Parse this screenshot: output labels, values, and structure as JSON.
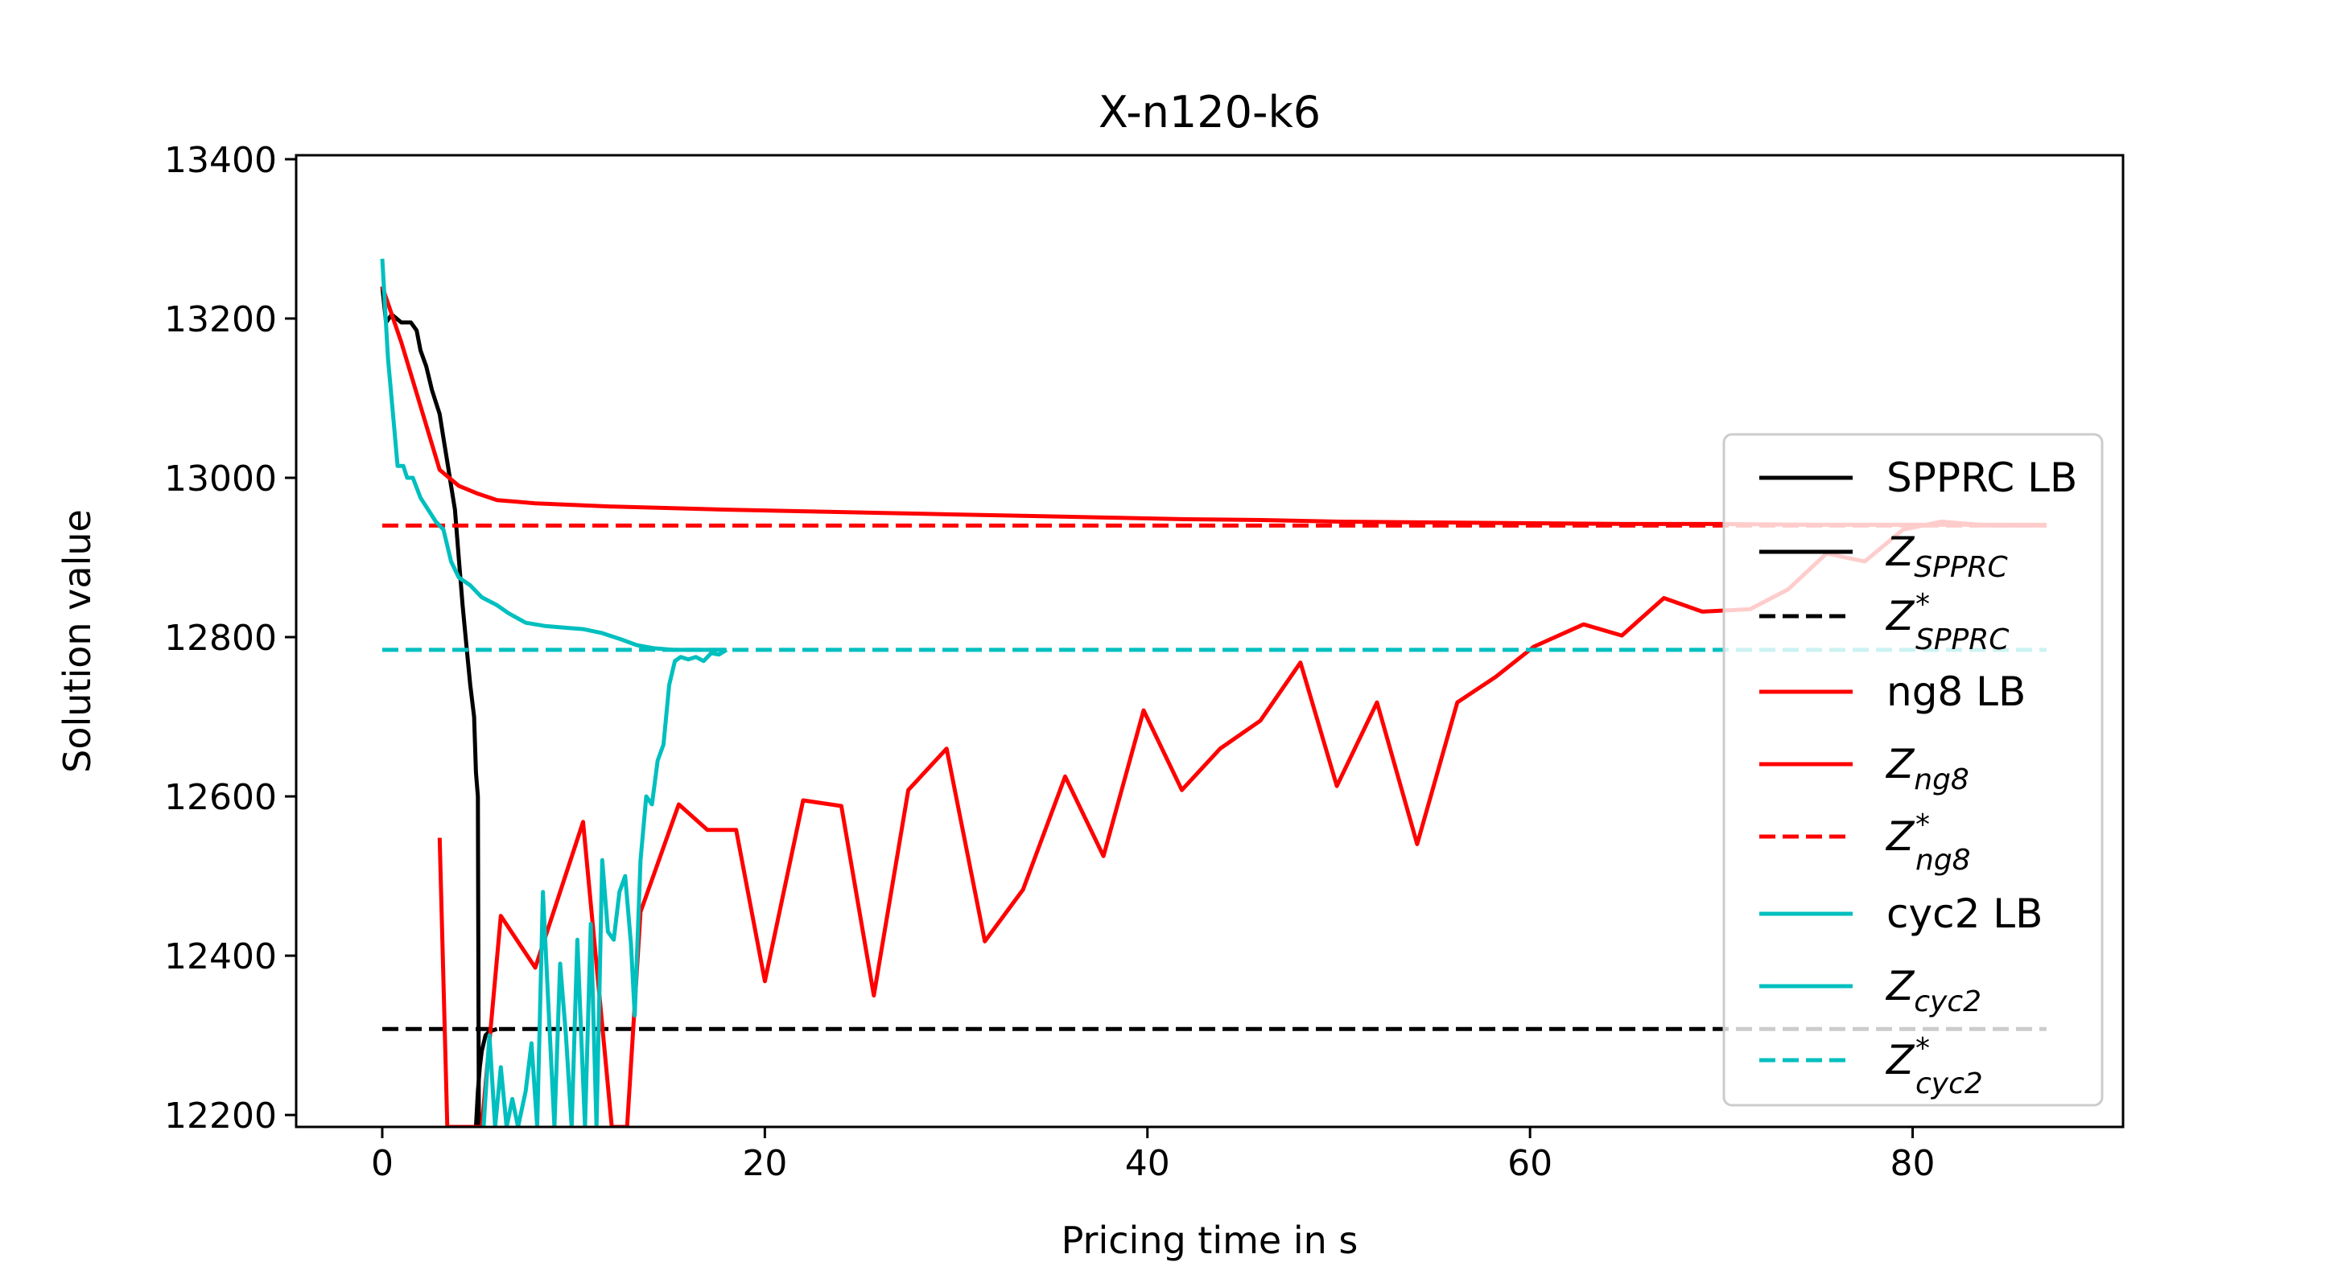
{
  "chart_data": {
    "type": "line",
    "title": "X-n120-k6",
    "xlabel": "Pricing time in s",
    "ylabel": "Solution value",
    "xlim": [
      -4.5,
      91
    ],
    "ylim": [
      12185,
      13405
    ],
    "xticks": [
      0,
      20,
      40,
      60,
      80
    ],
    "yticks": [
      12200,
      12400,
      12600,
      12800,
      13000,
      13200,
      13400
    ],
    "xtick_labels": [
      "0",
      "20",
      "40",
      "60",
      "80"
    ],
    "ytick_labels": [
      "12200",
      "12400",
      "12600",
      "12800",
      "13000",
      "13200",
      "13400"
    ],
    "grid": false,
    "legend_position": "right",
    "series": [
      {
        "id": "sspprc_lb",
        "color": "#000000",
        "style": "solid",
        "points": [
          [
            0,
            13240
          ],
          [
            0.2,
            13195
          ],
          [
            0.5,
            13205
          ],
          [
            1,
            13195
          ],
          [
            1.5,
            13195
          ],
          [
            1.8,
            13185
          ],
          [
            2,
            13160
          ],
          [
            2.3,
            13140
          ],
          [
            2.6,
            13110
          ],
          [
            3,
            13080
          ],
          [
            3.2,
            13050
          ],
          [
            3.4,
            13020
          ],
          [
            3.6,
            12990
          ],
          [
            3.8,
            12960
          ],
          [
            4,
            12900
          ],
          [
            4.2,
            12840
          ],
          [
            4.4,
            12790
          ],
          [
            4.6,
            12740
          ],
          [
            4.8,
            12700
          ],
          [
            4.9,
            12630
          ],
          [
            5,
            12600
          ],
          [
            5.05,
            12185
          ]
        ]
      },
      {
        "id": "z_spprc",
        "color": "#000000",
        "style": "solid",
        "points": [
          [
            4.9,
            12185
          ],
          [
            5,
            12230
          ],
          [
            5.1,
            12260
          ],
          [
            5.2,
            12280
          ],
          [
            5.4,
            12300
          ],
          [
            5.6,
            12305
          ],
          [
            6,
            12308
          ]
        ]
      },
      {
        "id": "z_spprc_star",
        "color": "#000000",
        "style": "dashed",
        "points": [
          [
            0,
            12308
          ],
          [
            87,
            12308
          ]
        ]
      },
      {
        "id": "ng8_lb",
        "color": "#ff0000",
        "style": "solid",
        "points": [
          [
            0,
            13240
          ],
          [
            1,
            13170
          ],
          [
            2,
            13090
          ],
          [
            3,
            13010
          ],
          [
            4,
            12990
          ],
          [
            5,
            12980
          ],
          [
            6,
            12972
          ],
          [
            8,
            12968
          ],
          [
            10,
            12966
          ],
          [
            12,
            12964
          ],
          [
            15,
            12962
          ],
          [
            18,
            12960
          ],
          [
            22,
            12958
          ],
          [
            26,
            12956
          ],
          [
            30,
            12954
          ],
          [
            34,
            12952
          ],
          [
            38,
            12950
          ],
          [
            42,
            12948
          ],
          [
            46,
            12947
          ],
          [
            50,
            12945
          ],
          [
            55,
            12944
          ],
          [
            60,
            12943
          ],
          [
            65,
            12942
          ],
          [
            70,
            12942
          ],
          [
            75,
            12941
          ],
          [
            80,
            12941
          ],
          [
            85,
            12941
          ],
          [
            87,
            12941
          ]
        ]
      },
      {
        "id": "z_ng8",
        "color": "#ff0000",
        "style": "solid",
        "points": [
          [
            3,
            12548
          ],
          [
            3.4,
            12185
          ],
          [
            4.9,
            12185
          ],
          [
            5.2,
            12185
          ],
          [
            6.2,
            12450
          ],
          [
            8,
            12385
          ],
          [
            10.5,
            12568
          ],
          [
            12,
            12185
          ],
          [
            12.8,
            12185
          ],
          [
            13.5,
            12455
          ],
          [
            15.5,
            12590
          ],
          [
            17,
            12558
          ],
          [
            18.5,
            12558
          ],
          [
            20,
            12368
          ],
          [
            22,
            12595
          ],
          [
            24,
            12588
          ],
          [
            25.7,
            12350
          ],
          [
            27.5,
            12608
          ],
          [
            29.5,
            12660
          ],
          [
            31.5,
            12418
          ],
          [
            33.5,
            12483
          ],
          [
            35.7,
            12625
          ],
          [
            37.7,
            12525
          ],
          [
            39.8,
            12708
          ],
          [
            41.8,
            12608
          ],
          [
            43.8,
            12660
          ],
          [
            45.9,
            12695
          ],
          [
            48,
            12768
          ],
          [
            49.9,
            12613
          ],
          [
            52,
            12718
          ],
          [
            54.1,
            12540
          ],
          [
            56.2,
            12718
          ],
          [
            58.2,
            12750
          ],
          [
            60.2,
            12788
          ],
          [
            62.8,
            12816
          ],
          [
            64.8,
            12802
          ],
          [
            67,
            12849
          ],
          [
            69,
            12832
          ],
          [
            71.5,
            12835
          ],
          [
            73.5,
            12860
          ],
          [
            75.5,
            12905
          ],
          [
            77.5,
            12895
          ],
          [
            79.5,
            12935
          ],
          [
            81.5,
            12945
          ],
          [
            84,
            12940
          ],
          [
            87,
            12940
          ]
        ]
      },
      {
        "id": "z_ng8_star",
        "color": "#ff0000",
        "style": "dashed",
        "points": [
          [
            0,
            12940
          ],
          [
            87,
            12940
          ]
        ]
      },
      {
        "id": "cyc2_lb",
        "color": "#00bfbf",
        "style": "solid",
        "points": [
          [
            0,
            13275
          ],
          [
            0.3,
            13150
          ],
          [
            0.6,
            13070
          ],
          [
            0.8,
            13015
          ],
          [
            1.1,
            13015
          ],
          [
            1.3,
            13000
          ],
          [
            1.6,
            13000
          ],
          [
            2,
            12975
          ],
          [
            2.4,
            12960
          ],
          [
            2.8,
            12945
          ],
          [
            3.2,
            12935
          ],
          [
            3.6,
            12895
          ],
          [
            4,
            12875
          ],
          [
            4.6,
            12865
          ],
          [
            5.2,
            12850
          ],
          [
            6,
            12840
          ],
          [
            6.6,
            12830
          ],
          [
            7.5,
            12818
          ],
          [
            8.5,
            12814
          ],
          [
            9.5,
            12812
          ],
          [
            10.5,
            12810
          ],
          [
            11.5,
            12805
          ],
          [
            12.5,
            12797
          ],
          [
            13.3,
            12790
          ],
          [
            14.2,
            12786
          ],
          [
            15.2,
            12784
          ],
          [
            16.5,
            12784
          ],
          [
            18,
            12784
          ]
        ]
      },
      {
        "id": "z_cyc2",
        "color": "#00bfbf",
        "style": "solid",
        "points": [
          [
            5.3,
            12185
          ],
          [
            5.6,
            12300
          ],
          [
            5.9,
            12185
          ],
          [
            6.2,
            12260
          ],
          [
            6.5,
            12185
          ],
          [
            6.8,
            12220
          ],
          [
            7.1,
            12185
          ],
          [
            7.5,
            12230
          ],
          [
            7.8,
            12290
          ],
          [
            8.1,
            12185
          ],
          [
            8.4,
            12480
          ],
          [
            8.7,
            12330
          ],
          [
            9,
            12185
          ],
          [
            9.3,
            12390
          ],
          [
            9.6,
            12300
          ],
          [
            9.9,
            12185
          ],
          [
            10.2,
            12420
          ],
          [
            10.4,
            12300
          ],
          [
            10.6,
            12185
          ],
          [
            10.9,
            12440
          ],
          [
            11.2,
            12185
          ],
          [
            11.5,
            12520
          ],
          [
            11.8,
            12430
          ],
          [
            12.1,
            12420
          ],
          [
            12.4,
            12480
          ],
          [
            12.7,
            12500
          ],
          [
            13,
            12415
          ],
          [
            13.2,
            12325
          ],
          [
            13.5,
            12520
          ],
          [
            13.8,
            12600
          ],
          [
            14.1,
            12590
          ],
          [
            14.4,
            12645
          ],
          [
            14.7,
            12665
          ],
          [
            15,
            12740
          ],
          [
            15.3,
            12770
          ],
          [
            15.6,
            12775
          ],
          [
            16,
            12772
          ],
          [
            16.4,
            12775
          ],
          [
            16.8,
            12770
          ],
          [
            17.2,
            12780
          ],
          [
            17.6,
            12778
          ],
          [
            18,
            12784
          ]
        ]
      },
      {
        "id": "z_cyc2_star",
        "color": "#00bfbf",
        "style": "dashed",
        "points": [
          [
            0,
            12784
          ],
          [
            87,
            12784
          ]
        ]
      }
    ],
    "legend": [
      {
        "base": "SPPRC LB",
        "sub": "",
        "sup": "",
        "color": "#000000",
        "style": "solid"
      },
      {
        "base": "Z",
        "sub": "SPPRC",
        "sup": "",
        "color": "#000000",
        "style": "solid"
      },
      {
        "base": "Z",
        "sub": "SPPRC",
        "sup": "*",
        "color": "#000000",
        "style": "dashed"
      },
      {
        "base": "ng8 LB",
        "sub": "",
        "sup": "",
        "color": "#ff0000",
        "style": "solid"
      },
      {
        "base": "Z",
        "sub": "ng8",
        "sup": "",
        "color": "#ff0000",
        "style": "solid"
      },
      {
        "base": "Z",
        "sub": "ng8",
        "sup": "*",
        "color": "#ff0000",
        "style": "dashed"
      },
      {
        "base": "cyc2 LB",
        "sub": "",
        "sup": "",
        "color": "#00bfbf",
        "style": "solid"
      },
      {
        "base": "Z",
        "sub": "cyc2",
        "sup": "",
        "color": "#00bfbf",
        "style": "solid"
      },
      {
        "base": "Z",
        "sub": "cyc2",
        "sup": "*",
        "color": "#00bfbf",
        "style": "dashed"
      }
    ]
  }
}
